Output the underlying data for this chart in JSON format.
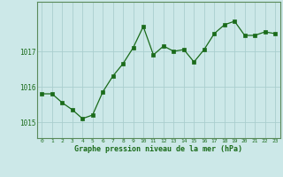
{
  "x": [
    0,
    1,
    2,
    3,
    4,
    5,
    6,
    7,
    8,
    9,
    10,
    11,
    12,
    13,
    14,
    15,
    16,
    17,
    18,
    19,
    20,
    21,
    22,
    23
  ],
  "y": [
    1015.8,
    1015.8,
    1015.55,
    1015.35,
    1015.1,
    1015.2,
    1015.85,
    1016.3,
    1016.65,
    1017.1,
    1017.7,
    1016.9,
    1017.15,
    1017.0,
    1017.05,
    1016.7,
    1017.05,
    1017.5,
    1017.75,
    1017.85,
    1017.45,
    1017.45,
    1017.55,
    1017.5
  ],
  "line_color": "#1a6b1a",
  "marker_color": "#1a6b1a",
  "bg_color": "#cce8e8",
  "grid_color": "#aacece",
  "xlabel": "Graphe pression niveau de la mer (hPa)",
  "xlabel_color": "#1a6b1a",
  "ylabel_ticks": [
    1015,
    1016,
    1017
  ],
  "ylim": [
    1014.55,
    1018.4
  ],
  "xlim": [
    -0.5,
    23.5
  ],
  "xtick_labels": [
    "0",
    "1",
    "2",
    "3",
    "4",
    "5",
    "6",
    "7",
    "8",
    "9",
    "10",
    "11",
    "12",
    "13",
    "14",
    "15",
    "16",
    "17",
    "18",
    "19",
    "20",
    "21",
    "22",
    "23"
  ],
  "tick_color": "#1a6b1a",
  "spine_color": "#5a8a5a"
}
